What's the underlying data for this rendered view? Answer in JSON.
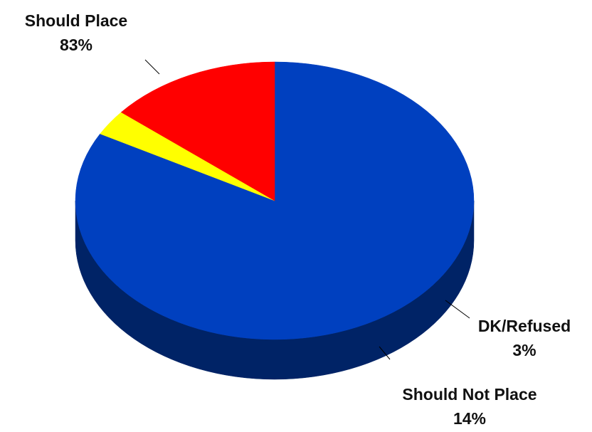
{
  "chart_data": {
    "type": "pie",
    "title": "",
    "view": "3d",
    "slices": [
      {
        "label": "Should Place",
        "value": 83,
        "value_label": "83%",
        "color": "#0040BF",
        "side_color": "#002366"
      },
      {
        "label": "DK/Refused",
        "value": 3,
        "value_label": "3%",
        "color": "#FFFF00",
        "side_color": "#8A8A00"
      },
      {
        "label": "Should Not Place",
        "value": 14,
        "value_label": "14%",
        "color": "#FF0000",
        "side_color": "#7A0000"
      }
    ]
  }
}
